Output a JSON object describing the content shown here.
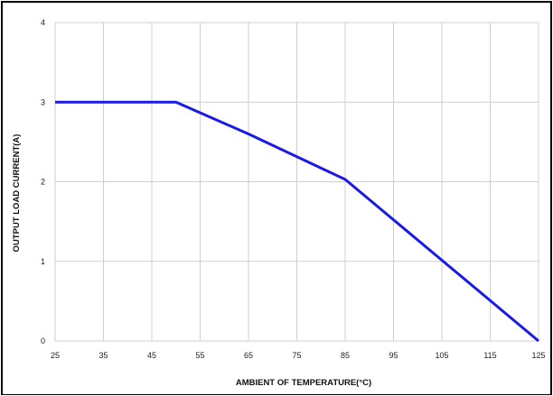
{
  "chart_data": {
    "type": "line",
    "xlabel": "AMBIENT OF TEMPERATURE(°C)",
    "ylabel": "OUTPUT LOAD CURRENT(A)",
    "xlim": [
      25,
      125
    ],
    "ylim": [
      0,
      4
    ],
    "xticks": [
      25,
      35,
      45,
      55,
      65,
      75,
      85,
      95,
      105,
      115,
      125
    ],
    "yticks": [
      0,
      1,
      2,
      3,
      4
    ],
    "grid": true,
    "series": [
      {
        "x": [
          25,
          50,
          65,
          85,
          125
        ],
        "y": [
          3.0,
          3.0,
          2.6,
          2.03,
          0.0
        ],
        "color": "#1a1ae6"
      }
    ]
  }
}
